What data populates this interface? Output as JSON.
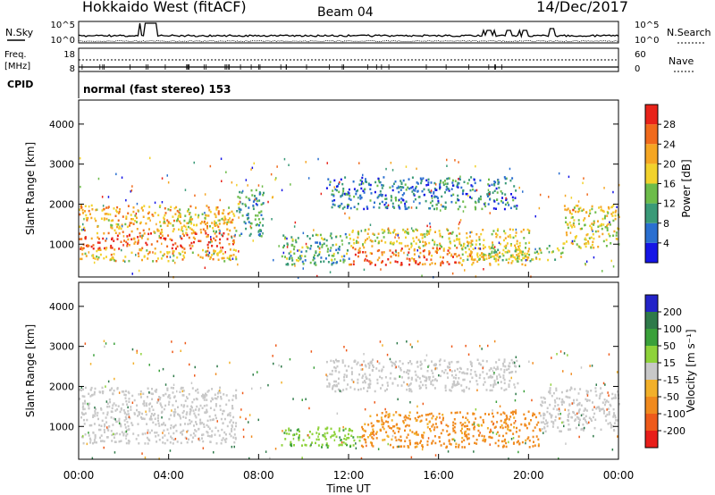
{
  "header": {
    "station": "Hokkaido West (fitACF)",
    "beam": "Beam 04",
    "date": "14/Dec/2017"
  },
  "top_panels": {
    "nsky_label": "N.Sky",
    "nsearch_label": "N.Search",
    "noise_ticks": [
      "10^5",
      "10^0"
    ],
    "freq_label": "Freq.",
    "freq_unit": "[MHz]",
    "freq_ticks": [
      "18",
      "8"
    ],
    "nave_label": "Nave",
    "nave_ticks": [
      "60",
      "0"
    ],
    "cpid_label": "CPID",
    "cpid_text": "normal (fast stereo) 153"
  },
  "chart_data": [
    {
      "type": "heatmap",
      "name": "power",
      "ylabel": "Slant Range [km]",
      "xlim": [
        "00:00",
        "24:00"
      ],
      "ylim": [
        180,
        4600
      ],
      "yticks": [
        1000,
        2000,
        3000,
        4000
      ],
      "colorbar": {
        "label": "Power [dB]",
        "ticks": [
          4,
          8,
          12,
          16,
          20,
          24,
          28
        ],
        "colors": [
          "#1515e6",
          "#2a6fd0",
          "#3a9a78",
          "#6dbc4a",
          "#f2d22c",
          "#f5a623",
          "#f06a1c",
          "#e8231a"
        ],
        "range": [
          0,
          32
        ]
      },
      "echo_regions": [
        {
          "t": [
            0.0,
            7.0
          ],
          "r": [
            600,
            2000
          ],
          "level": 20,
          "core": [
            0.0,
            7.0,
            900,
            1300
          ]
        },
        {
          "t": [
            7.0,
            8.2
          ],
          "r": [
            1200,
            2400
          ],
          "level": 10
        },
        {
          "t": [
            9.0,
            12.0
          ],
          "r": [
            500,
            1300
          ],
          "level": 12
        },
        {
          "t": [
            11.0,
            19.5
          ],
          "r": [
            1900,
            2700
          ],
          "level": 8
        },
        {
          "t": [
            12.0,
            20.0
          ],
          "r": [
            500,
            1400
          ],
          "level": 18,
          "core": [
            12.0,
            17.0,
            500,
            950
          ]
        },
        {
          "t": [
            17.0,
            21.5
          ],
          "r": [
            600,
            1000
          ],
          "level": 16
        },
        {
          "t": [
            21.5,
            24.0
          ],
          "r": [
            900,
            2000
          ],
          "level": 18
        }
      ]
    },
    {
      "type": "heatmap",
      "name": "velocity",
      "ylabel": "Slant Range [km]",
      "xlabel": "Time UT",
      "xticks": [
        "00:00",
        "04:00",
        "08:00",
        "12:00",
        "16:00",
        "20:00",
        "00:00"
      ],
      "ylim": [
        180,
        4600
      ],
      "yticks": [
        1000,
        2000,
        3000,
        4000
      ],
      "colorbar": {
        "label": "Velocity [m s⁻¹]",
        "ticks": [
          200,
          100,
          50,
          15,
          -15,
          -50,
          -100,
          -200
        ],
        "colors": [
          "#2323c8",
          "#2f7a4a",
          "#3aa03a",
          "#8ed23a",
          "#c8c8c8",
          "#f2b02a",
          "#f08a1e",
          "#ee5a1a",
          "#e81e1a"
        ]
      },
      "echo_regions": [
        {
          "t": [
            0.0,
            7.0
          ],
          "r": [
            600,
            2000
          ],
          "level": 0
        },
        {
          "t": [
            9.0,
            12.5
          ],
          "r": [
            500,
            1000
          ],
          "level": 40
        },
        {
          "t": [
            11.0,
            19.5
          ],
          "r": [
            1900,
            2700
          ],
          "level": 0
        },
        {
          "t": [
            12.5,
            20.5
          ],
          "r": [
            500,
            1400
          ],
          "level": -60
        },
        {
          "t": [
            20.5,
            24.0
          ],
          "r": [
            900,
            2000
          ],
          "level": 0
        }
      ]
    }
  ]
}
